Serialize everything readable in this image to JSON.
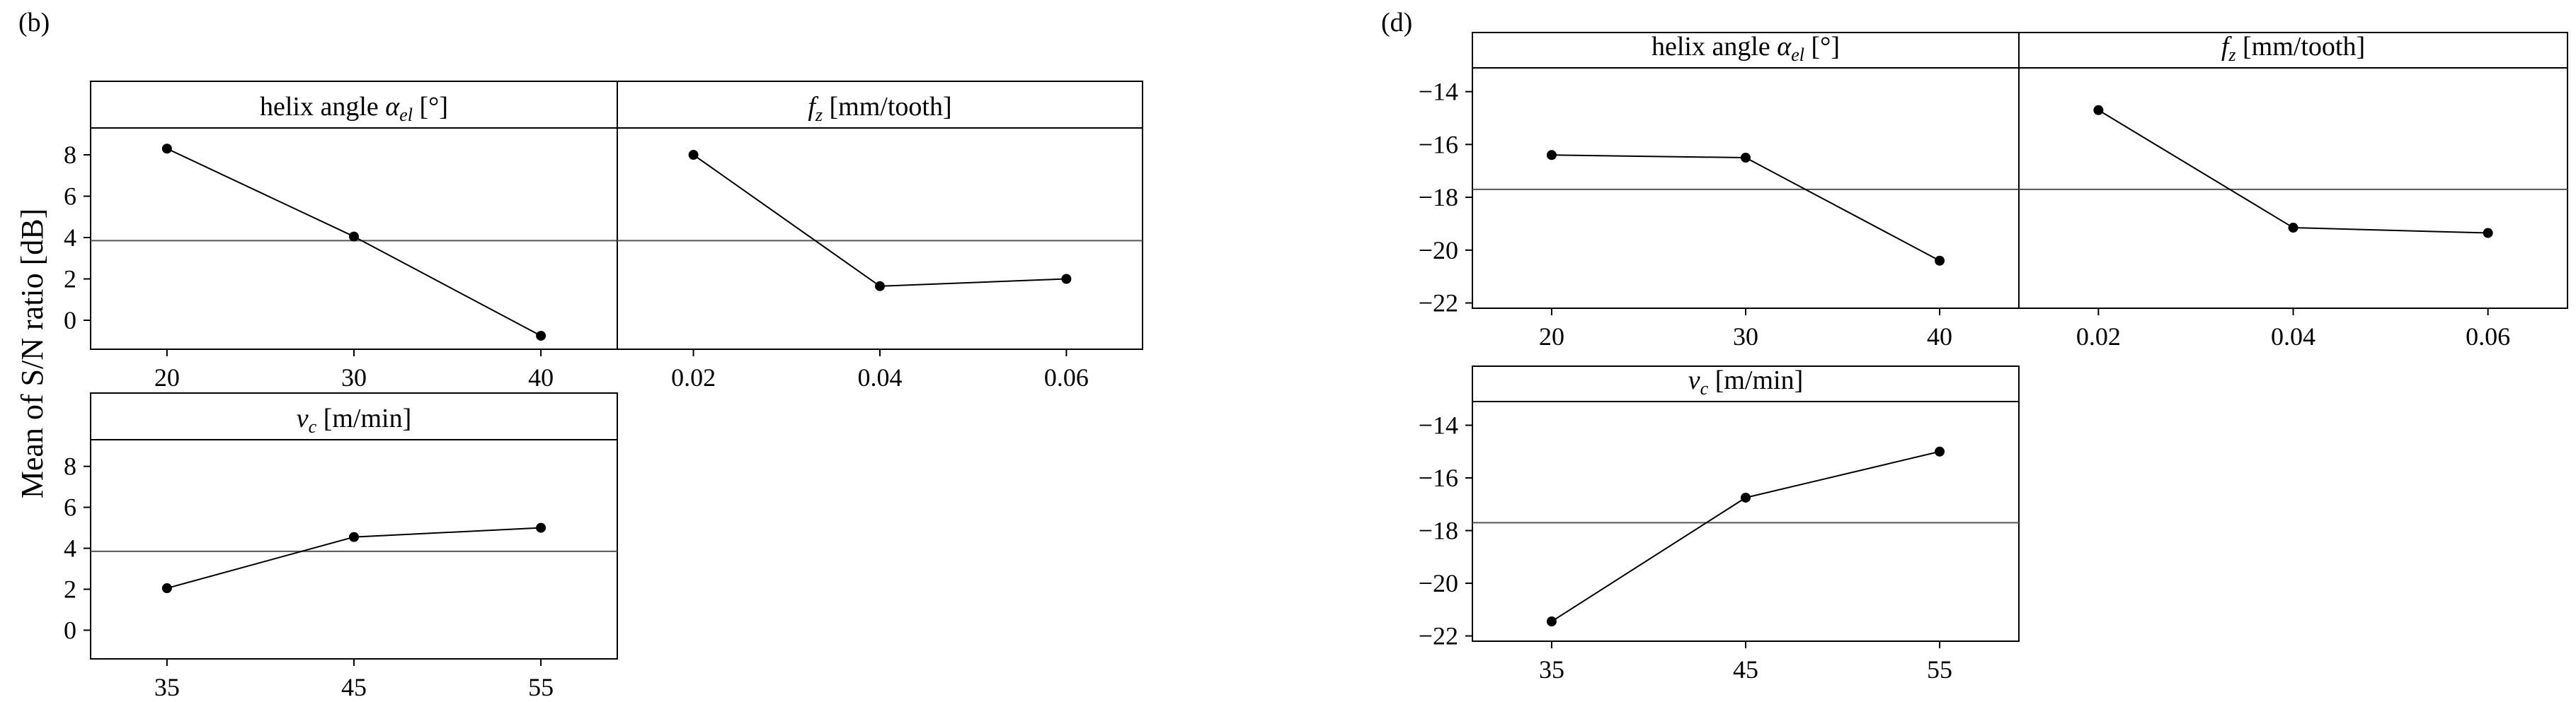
{
  "chart_data": [
    {
      "type": "line",
      "figure_label": "(b)",
      "ylabel": "Mean of S/N ratio [dB]",
      "ylim": [
        -1.4,
        9.3
      ],
      "yticks": [
        0,
        2,
        4,
        6,
        8
      ],
      "grand_mean": 3.85,
      "panels": [
        {
          "title_text": "helix angle ",
          "title_symbol": "α",
          "title_subscript": "el",
          "title_unit": " [°]",
          "x": [
            "20",
            "30",
            "40"
          ],
          "values": [
            8.3,
            4.05,
            -0.75
          ]
        },
        {
          "title_text": "",
          "title_symbol": "f",
          "title_subscript": "z",
          "title_unit": " [mm/tooth]",
          "x": [
            "0.02",
            "0.04",
            "0.06"
          ],
          "values": [
            8.0,
            1.65,
            2.0
          ]
        },
        {
          "title_text": "",
          "title_symbol": "v",
          "title_subscript": "c",
          "title_unit": " [m/min]",
          "x": [
            "35",
            "45",
            "55"
          ],
          "values": [
            2.05,
            4.55,
            5.0
          ]
        }
      ]
    },
    {
      "type": "line",
      "figure_label": "(d)",
      "ylabel": "",
      "ylim": [
        -22.2,
        -13.1
      ],
      "yticks": [
        -22,
        -20,
        -18,
        -16,
        -14
      ],
      "grand_mean": -17.7,
      "panels": [
        {
          "title_text": "helix angle ",
          "title_symbol": "α",
          "title_subscript": "el",
          "title_unit": " [°]",
          "x": [
            "20",
            "30",
            "40"
          ],
          "values": [
            -16.4,
            -16.5,
            -20.4
          ]
        },
        {
          "title_text": "",
          "title_symbol": "f",
          "title_subscript": "z",
          "title_unit": " [mm/tooth]",
          "x": [
            "0.02",
            "0.04",
            "0.06"
          ],
          "values": [
            -14.7,
            -19.15,
            -19.35
          ]
        },
        {
          "title_text": "",
          "title_symbol": "v",
          "title_subscript": "c",
          "title_unit": " [m/min]",
          "x": [
            "35",
            "45",
            "55"
          ],
          "values": [
            -21.45,
            -16.75,
            -15.0
          ]
        }
      ]
    }
  ]
}
